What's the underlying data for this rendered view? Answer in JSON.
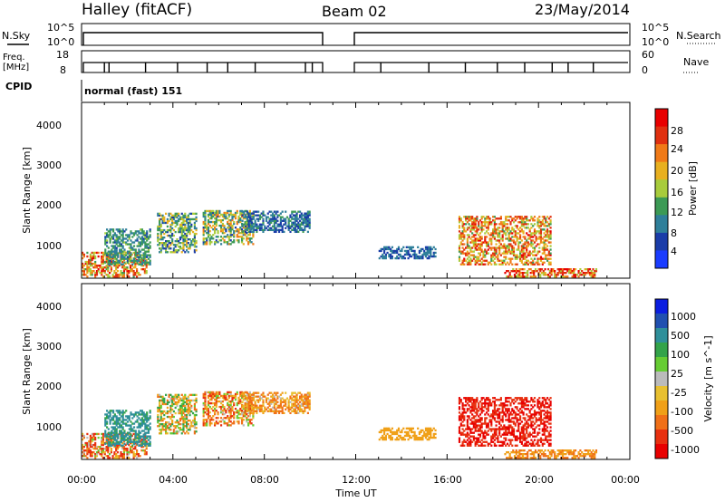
{
  "header": {
    "title": "Halley (fitACF)",
    "beam": "Beam 02",
    "date": "23/May/2014"
  },
  "top_panels": {
    "nsky_label": "N.Sky",
    "nsearch_label": "N.Search",
    "nsky_ticks": [
      "10^5",
      "10^0"
    ],
    "nsearch_ticks": [
      "10^5",
      "10^0"
    ],
    "freq_label_1": "Freq.",
    "freq_label_2": "[MHz]",
    "freq_ticks": [
      "18",
      "8"
    ],
    "nave_label": "Nave",
    "nave_ticks": [
      "60",
      "0"
    ],
    "cpid_label": "CPID",
    "cpid_text": "normal (fast) 151"
  },
  "x_axis": {
    "label": "Time UT",
    "ticks": [
      "00:00",
      "04:00",
      "08:00",
      "12:00",
      "16:00",
      "20:00",
      "00:00"
    ]
  },
  "colors": {
    "power_scale": [
      "#1a3cff",
      "#1a3ca8",
      "#2f7f9a",
      "#3c9a55",
      "#a8cc3c",
      "#e8b020",
      "#f07a18",
      "#e03010",
      "#e80000"
    ],
    "velocity_scale": [
      "#0b1ee0",
      "#2050b0",
      "#2f8f9a",
      "#33a34a",
      "#66cc33",
      "#bbbbbb",
      "#e8c030",
      "#f0a018",
      "#f07018",
      "#e83010",
      "#e80000"
    ]
  },
  "chart_data": [
    {
      "type": "heatmap",
      "name": "power-panel",
      "ylabel": "Slant Range [km]",
      "y_ticks": [
        "1000",
        "2000",
        "3000",
        "4000"
      ],
      "ylim": [
        180,
        4500
      ],
      "xlim_hours": [
        0,
        24
      ],
      "colorbar_label": "Power [dB]",
      "colorbar_ticks": [
        "28",
        "24",
        "20",
        "16",
        "12",
        "8",
        "4"
      ],
      "clim": [
        0,
        30
      ],
      "regions": [
        {
          "t0": 0.0,
          "t1": 2.8,
          "r0": 200,
          "r1": 800,
          "v0": 12,
          "v1": 28
        },
        {
          "t0": 1.0,
          "t1": 3.0,
          "r0": 500,
          "r1": 1400,
          "v0": 6,
          "v1": 14
        },
        {
          "t0": 3.3,
          "t1": 5.0,
          "r0": 800,
          "r1": 1750,
          "v0": 4,
          "v1": 20
        },
        {
          "t0": 5.3,
          "t1": 7.5,
          "r0": 1000,
          "r1": 1850,
          "v0": 6,
          "v1": 22
        },
        {
          "t0": 7.0,
          "t1": 10.0,
          "r0": 1300,
          "r1": 1800,
          "v0": 4,
          "v1": 12
        },
        {
          "t0": 13.0,
          "t1": 15.5,
          "r0": 650,
          "r1": 950,
          "v0": 4,
          "v1": 10
        },
        {
          "t0": 16.5,
          "t1": 20.5,
          "r0": 500,
          "r1": 1700,
          "v0": 12,
          "v1": 28
        },
        {
          "t0": 18.5,
          "t1": 22.5,
          "r0": 200,
          "r1": 400,
          "v0": 14,
          "v1": 30
        }
      ]
    },
    {
      "type": "heatmap",
      "name": "velocity-panel",
      "ylabel": "Slant Range [km]",
      "y_ticks": [
        "1000",
        "2000",
        "3000",
        "4000"
      ],
      "ylim": [
        180,
        4500
      ],
      "xlim_hours": [
        0,
        24
      ],
      "colorbar_label": "Velocity [m s^-1]",
      "colorbar_ticks": [
        "1000",
        "500",
        "100",
        "25",
        "-25",
        "-100",
        "-500",
        "-1000"
      ],
      "regions": [
        {
          "t0": 0.0,
          "t1": 2.8,
          "r0": 200,
          "r1": 800,
          "v0": -500,
          "v1": 100
        },
        {
          "t0": 1.0,
          "t1": 3.0,
          "r0": 500,
          "r1": 1400,
          "v0": 100,
          "v1": 500
        },
        {
          "t0": 3.3,
          "t1": 5.0,
          "r0": 800,
          "r1": 1750,
          "v0": -200,
          "v1": 200
        },
        {
          "t0": 5.3,
          "t1": 7.5,
          "r0": 1000,
          "r1": 1850,
          "v0": -300,
          "v1": 100
        },
        {
          "t0": 7.0,
          "t1": 10.0,
          "r0": 1300,
          "r1": 1800,
          "v0": -200,
          "v1": 50
        },
        {
          "t0": 13.0,
          "t1": 15.5,
          "r0": 650,
          "r1": 950,
          "v0": -100,
          "v1": -25
        },
        {
          "t0": 16.5,
          "t1": 20.5,
          "r0": 500,
          "r1": 1700,
          "v0": -800,
          "v1": -200
        },
        {
          "t0": 18.5,
          "t1": 22.5,
          "r0": 200,
          "r1": 400,
          "v0": -150,
          "v1": -60
        }
      ]
    }
  ]
}
